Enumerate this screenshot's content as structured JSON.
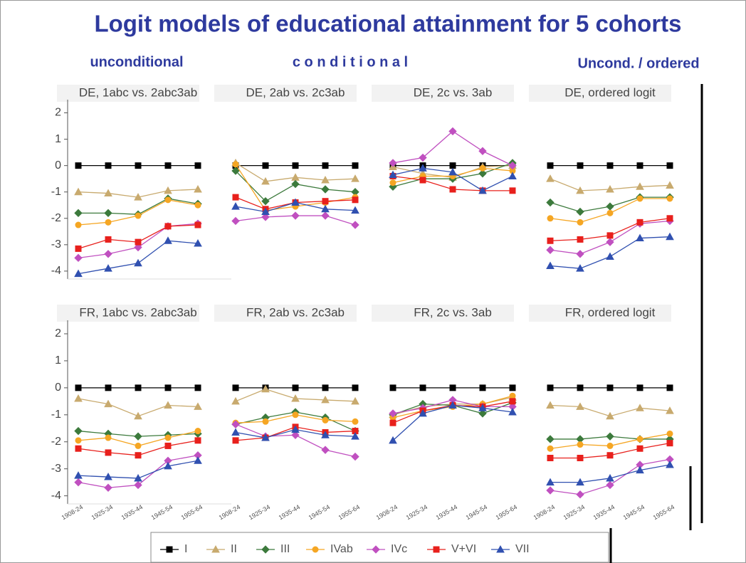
{
  "title": "Logit models of educational attainment for 5 cohorts",
  "column_labels": [
    "unconditional",
    "c o n d i t i o n a l",
    "Uncond. / ordered"
  ],
  "chart_data": [
    {
      "type": "line",
      "title": "DE, 1abc vs. 2abc3ab",
      "ylim": [
        -4.3,
        2.5
      ],
      "yticks": [
        2,
        1,
        0,
        -1,
        -2,
        -3,
        -4
      ],
      "series": [
        {
          "name": "I",
          "color": "#000000",
          "marker": "square",
          "values": [
            0,
            0,
            0,
            0,
            0
          ]
        },
        {
          "name": "II",
          "color": "#c8aa6e",
          "marker": "triangle",
          "values": [
            -1.0,
            -1.05,
            -1.2,
            -0.95,
            -0.9
          ]
        },
        {
          "name": "III",
          "color": "#3c7a3c",
          "marker": "diamond",
          "values": [
            -1.8,
            -1.8,
            -1.85,
            -1.25,
            -1.45
          ]
        },
        {
          "name": "IVab",
          "color": "#f5a623",
          "marker": "circle",
          "values": [
            -2.25,
            -2.15,
            -1.9,
            -1.3,
            -1.5
          ]
        },
        {
          "name": "IVc",
          "color": "#c050c0",
          "marker": "diamond",
          "values": [
            -3.5,
            -3.35,
            -3.1,
            -2.3,
            -2.2
          ]
        },
        {
          "name": "V+VI",
          "color": "#e8201c",
          "marker": "square",
          "values": [
            -3.15,
            -2.8,
            -2.9,
            -2.3,
            -2.25
          ]
        },
        {
          "name": "VII",
          "color": "#3050b0",
          "marker": "triangle",
          "values": [
            -4.1,
            -3.9,
            -3.7,
            -2.85,
            -2.95
          ]
        }
      ]
    },
    {
      "type": "line",
      "title": "DE, 2ab vs. 2c3ab",
      "ylim": [
        -4.3,
        2.5
      ],
      "series": [
        {
          "name": "I",
          "color": "#000000",
          "marker": "square",
          "values": [
            0,
            0,
            0,
            0,
            0
          ]
        },
        {
          "name": "II",
          "color": "#c8aa6e",
          "marker": "triangle",
          "values": [
            0.1,
            -0.6,
            -0.45,
            -0.55,
            -0.5
          ]
        },
        {
          "name": "III",
          "color": "#3c7a3c",
          "marker": "diamond",
          "values": [
            -0.2,
            -1.35,
            -0.7,
            -0.9,
            -1.0
          ]
        },
        {
          "name": "IVab",
          "color": "#f5a623",
          "marker": "circle",
          "values": [
            0.05,
            -1.7,
            -1.55,
            -1.4,
            -1.2
          ]
        },
        {
          "name": "IVc",
          "color": "#c050c0",
          "marker": "diamond",
          "values": [
            -2.1,
            -1.95,
            -1.9,
            -1.9,
            -2.25
          ]
        },
        {
          "name": "V+VI",
          "color": "#e8201c",
          "marker": "square",
          "values": [
            -1.2,
            -1.65,
            -1.4,
            -1.35,
            -1.3
          ]
        },
        {
          "name": "VII",
          "color": "#3050b0",
          "marker": "triangle",
          "values": [
            -1.55,
            -1.75,
            -1.4,
            -1.65,
            -1.7
          ]
        }
      ]
    },
    {
      "type": "line",
      "title": "DE, 2c vs. 3ab",
      "ylim": [
        -4.3,
        2.5
      ],
      "series": [
        {
          "name": "I",
          "color": "#000000",
          "marker": "square",
          "values": [
            0,
            0,
            0,
            0,
            0
          ]
        },
        {
          "name": "II",
          "color": "#c8aa6e",
          "marker": "triangle",
          "values": [
            -0.05,
            -0.3,
            -0.45,
            -0.05,
            0.0
          ]
        },
        {
          "name": "III",
          "color": "#3c7a3c",
          "marker": "diamond",
          "values": [
            -0.8,
            -0.5,
            -0.5,
            -0.3,
            0.1
          ]
        },
        {
          "name": "IVab",
          "color": "#f5a623",
          "marker": "circle",
          "values": [
            -0.65,
            -0.4,
            -0.4,
            -0.1,
            -0.2
          ]
        },
        {
          "name": "IVc",
          "color": "#c050c0",
          "marker": "diamond",
          "values": [
            0.1,
            0.3,
            1.3,
            0.55,
            0.0
          ]
        },
        {
          "name": "V+VI",
          "color": "#e8201c",
          "marker": "square",
          "values": [
            -0.4,
            -0.55,
            -0.9,
            -0.95,
            -0.95
          ]
        },
        {
          "name": "VII",
          "color": "#3050b0",
          "marker": "triangle",
          "values": [
            -0.35,
            -0.1,
            -0.25,
            -0.95,
            -0.4
          ]
        }
      ]
    },
    {
      "type": "line",
      "title": "DE, ordered logit",
      "ylim": [
        -4.3,
        2.5
      ],
      "series": [
        {
          "name": "I",
          "color": "#000000",
          "marker": "square",
          "values": [
            0,
            0,
            0,
            0,
            0
          ]
        },
        {
          "name": "II",
          "color": "#c8aa6e",
          "marker": "triangle",
          "values": [
            -0.5,
            -0.95,
            -0.9,
            -0.8,
            -0.75
          ]
        },
        {
          "name": "III",
          "color": "#3c7a3c",
          "marker": "diamond",
          "values": [
            -1.4,
            -1.75,
            -1.55,
            -1.2,
            -1.2
          ]
        },
        {
          "name": "IVab",
          "color": "#f5a623",
          "marker": "circle",
          "values": [
            -2.0,
            -2.15,
            -1.8,
            -1.25,
            -1.25
          ]
        },
        {
          "name": "IVc",
          "color": "#c050c0",
          "marker": "diamond",
          "values": [
            -3.2,
            -3.35,
            -2.9,
            -2.2,
            -2.1
          ]
        },
        {
          "name": "V+VI",
          "color": "#e8201c",
          "marker": "square",
          "values": [
            -2.85,
            -2.8,
            -2.65,
            -2.15,
            -2.0
          ]
        },
        {
          "name": "VII",
          "color": "#3050b0",
          "marker": "triangle",
          "values": [
            -3.8,
            -3.9,
            -3.45,
            -2.75,
            -2.7
          ]
        }
      ]
    },
    {
      "type": "line",
      "title": "FR, 1abc vs. 2abc3ab",
      "categories": [
        "1908-24",
        "1925-34",
        "1935-44",
        "1945-54",
        "1955-64"
      ],
      "ylim": [
        -4.3,
        2.5
      ],
      "yticks": [
        2,
        1,
        0,
        -1,
        -2,
        -3,
        -4
      ],
      "series": [
        {
          "name": "I",
          "color": "#000000",
          "marker": "square",
          "values": [
            0,
            0,
            0,
            0,
            0
          ]
        },
        {
          "name": "II",
          "color": "#c8aa6e",
          "marker": "triangle",
          "values": [
            -0.4,
            -0.6,
            -1.05,
            -0.65,
            -0.7
          ]
        },
        {
          "name": "III",
          "color": "#3c7a3c",
          "marker": "diamond",
          "values": [
            -1.6,
            -1.7,
            -1.8,
            -1.75,
            -1.7
          ]
        },
        {
          "name": "IVab",
          "color": "#f5a623",
          "marker": "circle",
          "values": [
            -1.95,
            -1.85,
            -2.15,
            -1.85,
            -1.6
          ]
        },
        {
          "name": "IVc",
          "color": "#c050c0",
          "marker": "diamond",
          "values": [
            -3.5,
            -3.7,
            -3.6,
            -2.7,
            -2.5
          ]
        },
        {
          "name": "V+VI",
          "color": "#e8201c",
          "marker": "square",
          "values": [
            -2.25,
            -2.4,
            -2.5,
            -2.15,
            -1.95
          ]
        },
        {
          "name": "VII",
          "color": "#3050b0",
          "marker": "triangle",
          "values": [
            -3.25,
            -3.3,
            -3.35,
            -2.9,
            -2.7
          ]
        }
      ]
    },
    {
      "type": "line",
      "title": "FR, 2ab vs. 2c3ab",
      "categories": [
        "1908-24",
        "1925-34",
        "1935-44",
        "1945-54",
        "1955-64"
      ],
      "ylim": [
        -4.3,
        2.5
      ],
      "series": [
        {
          "name": "I",
          "color": "#000000",
          "marker": "square",
          "values": [
            0,
            0,
            0,
            0,
            0
          ]
        },
        {
          "name": "II",
          "color": "#c8aa6e",
          "marker": "triangle",
          "values": [
            -0.5,
            -0.05,
            -0.4,
            -0.45,
            -0.5
          ]
        },
        {
          "name": "III",
          "color": "#3c7a3c",
          "marker": "diamond",
          "values": [
            -1.35,
            -1.1,
            -0.9,
            -1.1,
            -1.6
          ]
        },
        {
          "name": "IVab",
          "color": "#f5a623",
          "marker": "circle",
          "values": [
            -1.3,
            -1.25,
            -1.0,
            -1.2,
            -1.25
          ]
        },
        {
          "name": "IVc",
          "color": "#c050c0",
          "marker": "diamond",
          "values": [
            -1.35,
            -1.8,
            -1.75,
            -2.3,
            -2.55
          ]
        },
        {
          "name": "V+VI",
          "color": "#e8201c",
          "marker": "square",
          "values": [
            -1.95,
            -1.85,
            -1.45,
            -1.65,
            -1.6
          ]
        },
        {
          "name": "VII",
          "color": "#3050b0",
          "marker": "triangle",
          "values": [
            -1.65,
            -1.85,
            -1.55,
            -1.75,
            -1.8
          ]
        }
      ]
    },
    {
      "type": "line",
      "title": "FR, 2c vs. 3ab",
      "categories": [
        "1908-24",
        "1925-34",
        "1935-44",
        "1945-54",
        "1955-64"
      ],
      "ylim": [
        -4.3,
        2.5
      ],
      "series": [
        {
          "name": "I",
          "color": "#000000",
          "marker": "square",
          "values": [
            0,
            0,
            0,
            0,
            0
          ]
        },
        {
          "name": "II",
          "color": "#c8aa6e",
          "marker": "triangle",
          "values": [
            -1.0,
            -0.7,
            -0.6,
            -0.6,
            -0.35
          ]
        },
        {
          "name": "III",
          "color": "#3c7a3c",
          "marker": "diamond",
          "values": [
            -1.0,
            -0.6,
            -0.65,
            -0.95,
            -0.55
          ]
        },
        {
          "name": "IVab",
          "color": "#f5a623",
          "marker": "circle",
          "values": [
            -1.1,
            -0.85,
            -0.7,
            -0.6,
            -0.3
          ]
        },
        {
          "name": "IVc",
          "color": "#c050c0",
          "marker": "diamond",
          "values": [
            -0.95,
            -0.75,
            -0.45,
            -0.7,
            -0.7
          ]
        },
        {
          "name": "V+VI",
          "color": "#e8201c",
          "marker": "square",
          "values": [
            -1.3,
            -0.85,
            -0.65,
            -0.7,
            -0.5
          ]
        },
        {
          "name": "VII",
          "color": "#3050b0",
          "marker": "triangle",
          "values": [
            -1.95,
            -0.95,
            -0.65,
            -0.75,
            -0.9
          ]
        }
      ]
    },
    {
      "type": "line",
      "title": "FR, ordered logit",
      "categories": [
        "1908-24",
        "1925-34",
        "1935-44",
        "1945-54",
        "1955-64"
      ],
      "ylim": [
        -4.3,
        2.5
      ],
      "series": [
        {
          "name": "I",
          "color": "#000000",
          "marker": "square",
          "values": [
            0,
            0,
            0,
            0,
            0
          ]
        },
        {
          "name": "II",
          "color": "#c8aa6e",
          "marker": "triangle",
          "values": [
            -0.65,
            -0.7,
            -1.05,
            -0.75,
            -0.85
          ]
        },
        {
          "name": "III",
          "color": "#3c7a3c",
          "marker": "diamond",
          "values": [
            -1.9,
            -1.9,
            -1.8,
            -1.9,
            -1.9
          ]
        },
        {
          "name": "IVab",
          "color": "#f5a623",
          "marker": "circle",
          "values": [
            -2.25,
            -2.1,
            -2.15,
            -1.9,
            -1.7
          ]
        },
        {
          "name": "IVc",
          "color": "#c050c0",
          "marker": "diamond",
          "values": [
            -3.8,
            -3.95,
            -3.6,
            -2.85,
            -2.65
          ]
        },
        {
          "name": "V+VI",
          "color": "#e8201c",
          "marker": "square",
          "values": [
            -2.6,
            -2.6,
            -2.5,
            -2.25,
            -2.05
          ]
        },
        {
          "name": "VII",
          "color": "#3050b0",
          "marker": "triangle",
          "values": [
            -3.5,
            -3.5,
            -3.35,
            -3.05,
            -2.85
          ]
        }
      ]
    }
  ]
}
